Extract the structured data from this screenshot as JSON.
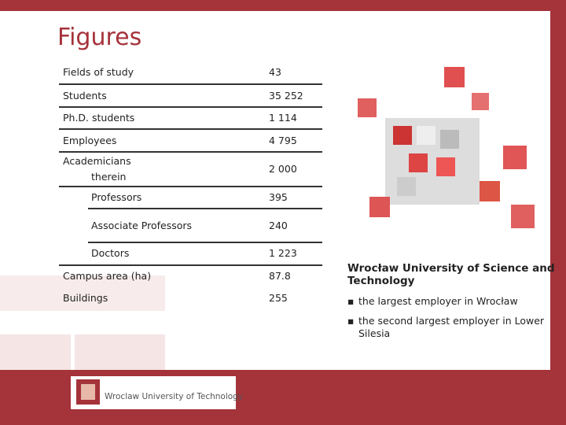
{
  "title": "Figures",
  "table": {
    "rows": [
      {
        "label": "Fields of study",
        "value": "43"
      },
      {
        "label": "Students",
        "value": "35 252"
      },
      {
        "label": "Ph.D. students",
        "value": "1 114"
      },
      {
        "label": "Employees",
        "value": "4 795"
      },
      {
        "label": "Academicians",
        "note": "therein",
        "value": "2 000"
      }
    ],
    "therein_rows": [
      {
        "label": "Professors",
        "value": "395"
      },
      {
        "label": "Associate Professors",
        "value": "240"
      },
      {
        "label": "Doctors",
        "value": "1 223"
      }
    ],
    "more_rows": [
      {
        "label": "Campus area (ha)",
        "value": "87.8"
      },
      {
        "label": "Buildings",
        "value": "255"
      }
    ]
  },
  "sidebar": {
    "heading": "Wrocław University of Science and Technology",
    "bullets": [
      "the largest employer in Wrocław",
      "the second largest employer in Lower Silesia"
    ]
  },
  "footer": {
    "logo_text": "Wroclaw University of Technology"
  }
}
